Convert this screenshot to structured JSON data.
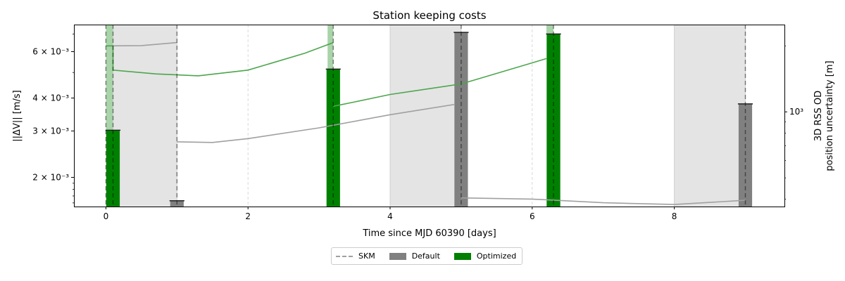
{
  "chart_data": {
    "type": "bar",
    "title": "Station keeping costs",
    "xlabel": "Time since MJD 60390 [days]",
    "ylabel": "||ΔV|| [m/s]",
    "y2label_line1": "3D RSS OD",
    "y2label_line2": "position uncertainty [m]",
    "xlim": [
      -0.45,
      9.55
    ],
    "ylim": [
      0.00155,
      0.0076
    ],
    "y_scale": "log",
    "y2_scale": "log",
    "xticks": [
      0,
      2,
      4,
      6,
      8
    ],
    "yticks": [
      {
        "value": 0.002,
        "label": "2 × 10⁻³"
      },
      {
        "value": 0.003,
        "label": "3 × 10⁻³"
      },
      {
        "value": 0.004,
        "label": "4 × 10⁻³"
      },
      {
        "value": 0.006,
        "label": "6 × 10⁻³"
      }
    ],
    "y2ticks": [
      {
        "value": 1000,
        "label": "10³"
      }
    ],
    "y2_value_range": [
      370,
      2500
    ],
    "colors": {
      "default": "#808080",
      "optimized": "#008000",
      "skm_line": "#a0a0a0",
      "default_line": "#a0a0a0",
      "optimized_line": "#4ca64c",
      "shade_default": "#e4e4e4",
      "shade_optimized": "#a9d3a9"
    },
    "skm_times": [
      0,
      0.1,
      1.0,
      3.2,
      5.0,
      6.3,
      9.0
    ],
    "default_tracking_windows": [
      [
        0.1,
        1.0
      ],
      [
        4.0,
        5.0
      ],
      [
        8.0,
        9.0
      ]
    ],
    "optimized_tracking_windows": [
      [
        0,
        0.1
      ],
      [
        3.12,
        3.2
      ],
      [
        6.2,
        6.3
      ]
    ],
    "faint_vlines": [
      2,
      6
    ],
    "series": [
      {
        "name": "Default",
        "bars": [
          {
            "x": 1.0,
            "value": 0.00163
          },
          {
            "x": 5.0,
            "value": 0.0071
          },
          {
            "x": 9.0,
            "value": 0.0038
          }
        ]
      },
      {
        "name": "Optimized",
        "bars": [
          {
            "x": 0.1,
            "value": 0.00302
          },
          {
            "x": 3.2,
            "value": 0.00515
          },
          {
            "x": 6.3,
            "value": 0.007
          }
        ]
      }
    ],
    "uncertainty_series": [
      {
        "name": "Default",
        "segments": [
          [
            [
              0,
              2000
            ],
            [
              0.5,
              2005
            ],
            [
              1.0,
              2070
            ]
          ],
          [
            [
              1.0,
              730
            ],
            [
              1.5,
              725
            ],
            [
              2.0,
              755
            ],
            [
              3.0,
              845
            ],
            [
              4.0,
              970
            ],
            [
              4.9,
              1080
            ]
          ],
          [
            [
              5.0,
              405
            ],
            [
              6.0,
              400
            ],
            [
              7.0,
              385
            ],
            [
              8.0,
              378
            ],
            [
              9.0,
              395
            ]
          ]
        ]
      },
      {
        "name": "Optimized",
        "segments": [
          [
            [
              0,
              2000
            ],
            [
              0.1,
              2000
            ],
            [
              0.1,
              1550
            ],
            [
              0.7,
              1490
            ],
            [
              1.3,
              1460
            ],
            [
              2.0,
              1550
            ],
            [
              2.8,
              1850
            ],
            [
              3.2,
              2070
            ]
          ],
          [
            [
              3.2,
              1060
            ],
            [
              3.5,
              1110
            ],
            [
              4.0,
              1200
            ],
            [
              5.0,
              1340
            ],
            [
              6.2,
              1750
            ]
          ]
        ]
      }
    ],
    "legend": {
      "position": "below-center",
      "entries": [
        {
          "label": "SKM",
          "kind": "line"
        },
        {
          "label": "Default",
          "kind": "bar"
        },
        {
          "label": "Optimized",
          "kind": "bar"
        }
      ]
    }
  }
}
